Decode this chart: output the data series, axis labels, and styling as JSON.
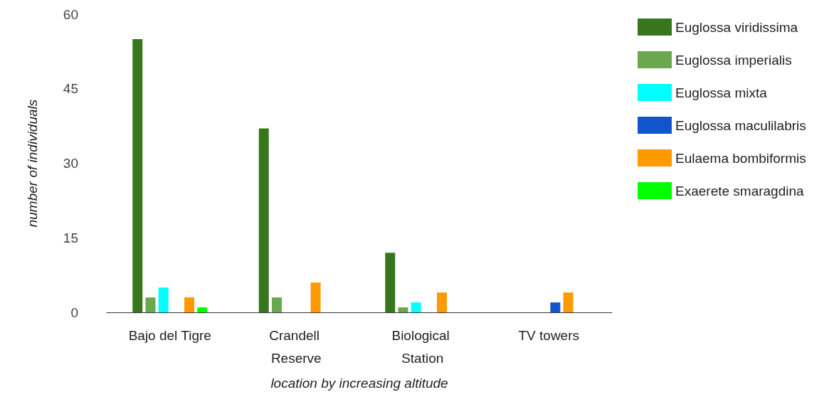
{
  "chart_data": {
    "type": "bar",
    "xlabel": "location by increasing altitude",
    "ylabel": "number of individuals",
    "categories": [
      "Bajo del Tigre",
      "Crandell Reserve",
      "Biological Station",
      "TV towers"
    ],
    "series": [
      {
        "name": "Euglossa viridissima",
        "color": "#38761d",
        "values": [
          55,
          37,
          12,
          0
        ]
      },
      {
        "name": "Euglossa imperialis",
        "color": "#6aa84f",
        "values": [
          3,
          3,
          1,
          0
        ]
      },
      {
        "name": "Euglossa mixta",
        "color": "#00ffff",
        "values": [
          5,
          0,
          2,
          0
        ]
      },
      {
        "name": "Euglossa maculilabris",
        "color": "#1155cc",
        "values": [
          0,
          0,
          0,
          2
        ]
      },
      {
        "name": "Eulaema bombiformis",
        "color": "#ff9900",
        "values": [
          3,
          6,
          4,
          4
        ]
      },
      {
        "name": "Exaerete smaragdina",
        "color": "#00ff00",
        "values": [
          1,
          0,
          0,
          0
        ]
      }
    ],
    "ylim": [
      0,
      60
    ],
    "yticks": [
      0,
      15,
      30,
      45,
      60
    ],
    "grid": false,
    "legend": "right"
  }
}
